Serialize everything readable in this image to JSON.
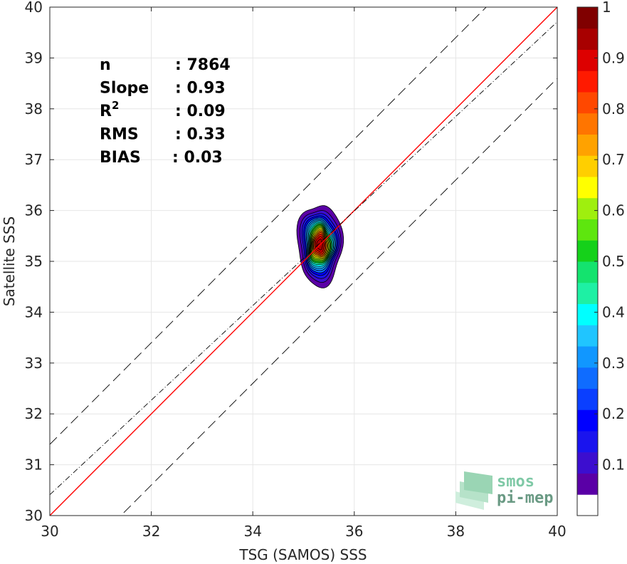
{
  "chart_data": {
    "type": "contour-scatter",
    "xlabel": "TSG (SAMOS) SSS",
    "ylabel": "Satellite SSS",
    "xlim": [
      30,
      40
    ],
    "ylim": [
      30,
      40
    ],
    "x_ticks": [
      "30",
      "32",
      "34",
      "36",
      "38",
      "40"
    ],
    "y_ticks": [
      "30",
      "31",
      "32",
      "33",
      "34",
      "35",
      "36",
      "37",
      "38",
      "39",
      "40"
    ],
    "grid": true,
    "stats": [
      {
        "label": "n",
        "sup": "",
        "value": ": 7864"
      },
      {
        "label": "Slope",
        "sup": "",
        "value": ": 0.93"
      },
      {
        "label": "R",
        "sup": "2",
        "value": ": 0.09"
      },
      {
        "label": "RMS",
        "sup": "",
        "value": ": 0.33"
      },
      {
        "label": "BIAS",
        "sup": "",
        "value": ": 0.03"
      }
    ],
    "lines": {
      "identity": {
        "x": [
          30,
          40
        ],
        "y": [
          30,
          40
        ],
        "color": "#ff0000",
        "style": "solid"
      },
      "regression": {
        "x": [
          30,
          40
        ],
        "y": [
          30.41,
          39.71
        ],
        "color": "#000000",
        "style": "dash-dot"
      },
      "upper_bound": {
        "x": [
          30,
          40
        ],
        "y": [
          31.4,
          41.4
        ],
        "color": "#000000",
        "style": "dashed"
      },
      "lower_bound": {
        "x": [
          30,
          40
        ],
        "y": [
          28.6,
          38.6
        ],
        "color": "#000000",
        "style": "dashed"
      }
    },
    "density_contours": {
      "center": [
        35.32,
        35.33
      ],
      "levels": [
        0.05,
        0.1,
        0.15,
        0.2,
        0.25,
        0.3,
        0.35,
        0.4,
        0.45,
        0.5,
        0.55,
        0.6,
        0.65,
        0.7,
        0.75,
        0.8,
        0.85,
        0.9,
        0.95
      ],
      "outer_extent_x": [
        34.9,
        35.8
      ],
      "outer_extent_y": [
        34.5,
        36.1
      ]
    },
    "colorbar": {
      "range": [
        0,
        1
      ],
      "tick_labels": [
        "0.1",
        "0.2",
        "0.3",
        "0.4",
        "0.5",
        "0.6",
        "0.7",
        "0.8",
        "0.9",
        "1"
      ],
      "colors": [
        "#ffffff",
        "#5a00a6",
        "#3c0ecf",
        "#1a14ee",
        "#0000ff",
        "#0a3fff",
        "#0f6cff",
        "#1197ff",
        "#20c5ff",
        "#00ffff",
        "#1ef0a4",
        "#14e36e",
        "#15d11a",
        "#5ee60e",
        "#9fef0e",
        "#ffff00",
        "#ffcf00",
        "#ffa200",
        "#ff7500",
        "#ff4800",
        "#ff1a00",
        "#dd0000",
        "#a80000",
        "#800000"
      ]
    }
  },
  "logo": {
    "line1": "smos",
    "line2": "pi-mep"
  }
}
